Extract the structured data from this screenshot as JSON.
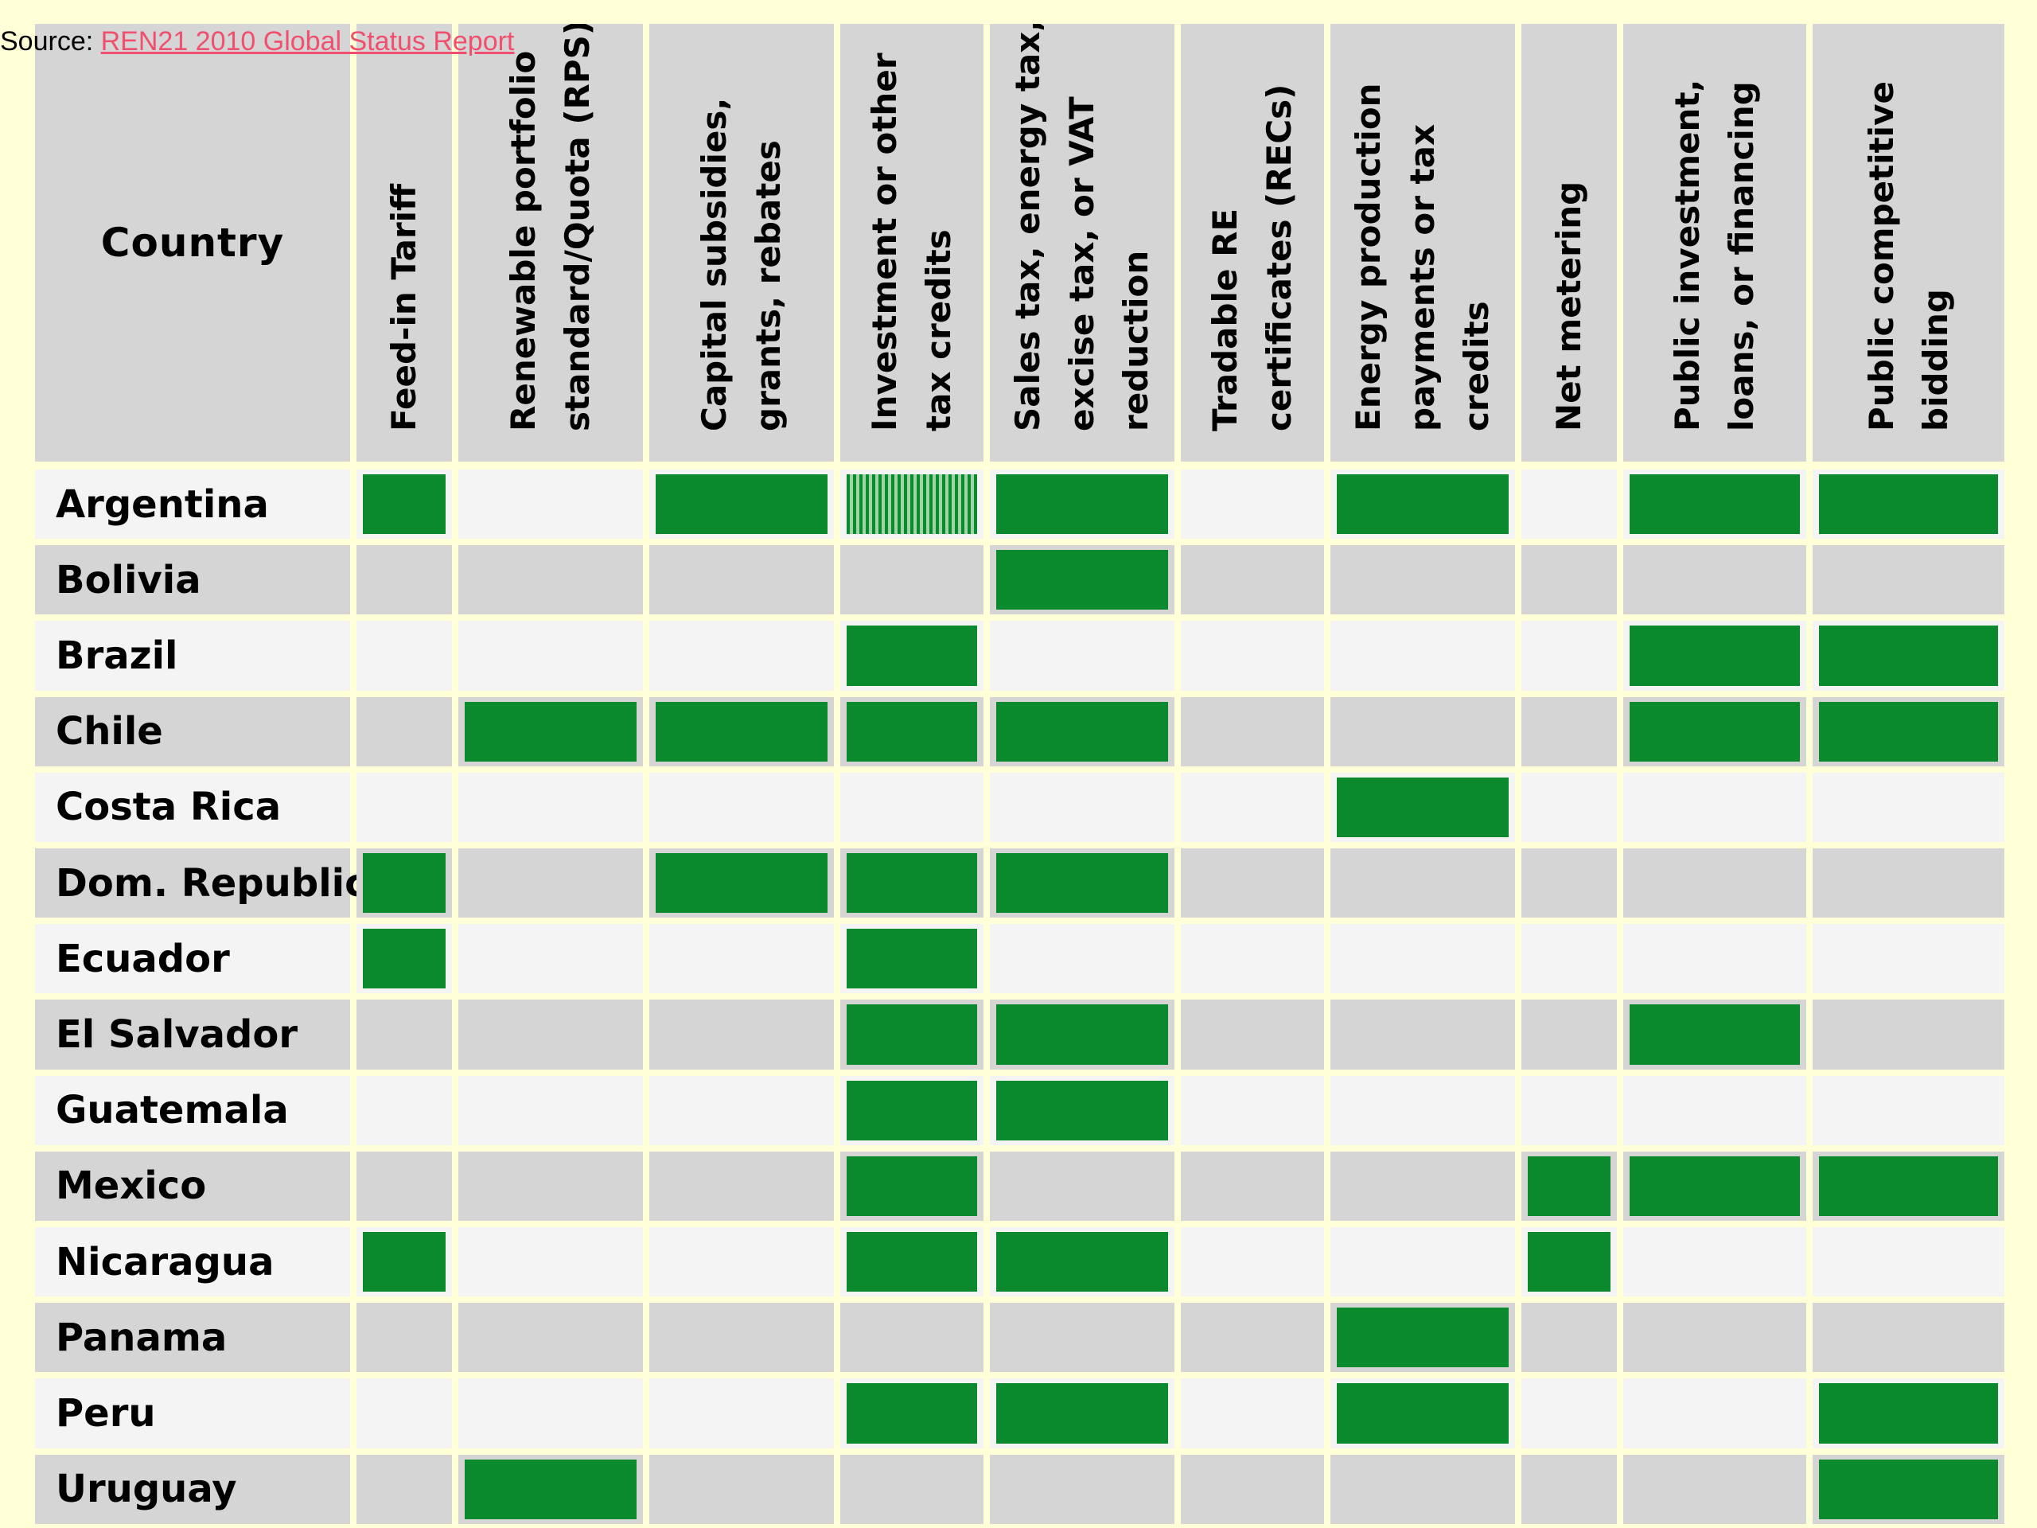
{
  "source": {
    "prefix": "Source: ",
    "link_text": "REN21 2010 Global Status Report"
  },
  "colors": {
    "background": "#ffffd8",
    "header_bg": "#d5d5d5",
    "row_light": "#f4f4f4",
    "row_dark": "#d5d5d5",
    "mark_full": "#0a8a2d",
    "mark_partial": "#52b062",
    "link": "#f0506e"
  },
  "chart_data": {
    "type": "table",
    "title": "",
    "legend": "none",
    "country_header": "Country",
    "columns": [
      "Feed-in Tariff",
      "Renewable portfolio standard/Quota (RPS)",
      "Capital subsidies, grants, rebates",
      "Investment or other tax credits",
      "Sales tax, energy tax, excise tax, or VAT reduction",
      "Tradable RE certificates (RECs)",
      "Energy production payments or tax credits",
      "Net metering",
      "Public investment, loans, or financing",
      "Public competitive bidding"
    ],
    "value_meaning": {
      "0": "no policy",
      "1": "policy in place",
      "2": "partial (hatched)"
    },
    "rows": [
      {
        "country": "Argentina",
        "values": [
          1,
          0,
          1,
          2,
          1,
          0,
          1,
          0,
          1,
          1
        ]
      },
      {
        "country": "Bolivia",
        "values": [
          0,
          0,
          0,
          0,
          1,
          0,
          0,
          0,
          0,
          0
        ]
      },
      {
        "country": "Brazil",
        "values": [
          0,
          0,
          0,
          1,
          0,
          0,
          0,
          0,
          1,
          1
        ]
      },
      {
        "country": "Chile",
        "values": [
          0,
          1,
          1,
          1,
          1,
          0,
          0,
          0,
          1,
          1
        ]
      },
      {
        "country": "Costa Rica",
        "values": [
          0,
          0,
          0,
          0,
          0,
          0,
          1,
          0,
          0,
          0
        ]
      },
      {
        "country": "Dom. Republic",
        "values": [
          1,
          0,
          1,
          1,
          1,
          0,
          0,
          0,
          0,
          0
        ]
      },
      {
        "country": "Ecuador",
        "values": [
          1,
          0,
          0,
          1,
          0,
          0,
          0,
          0,
          0,
          0
        ]
      },
      {
        "country": "El Salvador",
        "values": [
          0,
          0,
          0,
          1,
          1,
          0,
          0,
          0,
          1,
          0
        ]
      },
      {
        "country": "Guatemala",
        "values": [
          0,
          0,
          0,
          1,
          1,
          0,
          0,
          0,
          0,
          0
        ]
      },
      {
        "country": "Mexico",
        "values": [
          0,
          0,
          0,
          1,
          0,
          0,
          0,
          1,
          1,
          1
        ]
      },
      {
        "country": "Nicaragua",
        "values": [
          1,
          0,
          0,
          1,
          1,
          0,
          0,
          1,
          0,
          0
        ]
      },
      {
        "country": "Panama",
        "values": [
          0,
          0,
          0,
          0,
          0,
          0,
          1,
          0,
          0,
          0
        ]
      },
      {
        "country": "Peru",
        "values": [
          0,
          0,
          0,
          1,
          1,
          0,
          1,
          0,
          0,
          1
        ]
      },
      {
        "country": "Uruguay",
        "values": [
          0,
          1,
          0,
          0,
          0,
          0,
          0,
          0,
          0,
          1
        ]
      }
    ]
  }
}
